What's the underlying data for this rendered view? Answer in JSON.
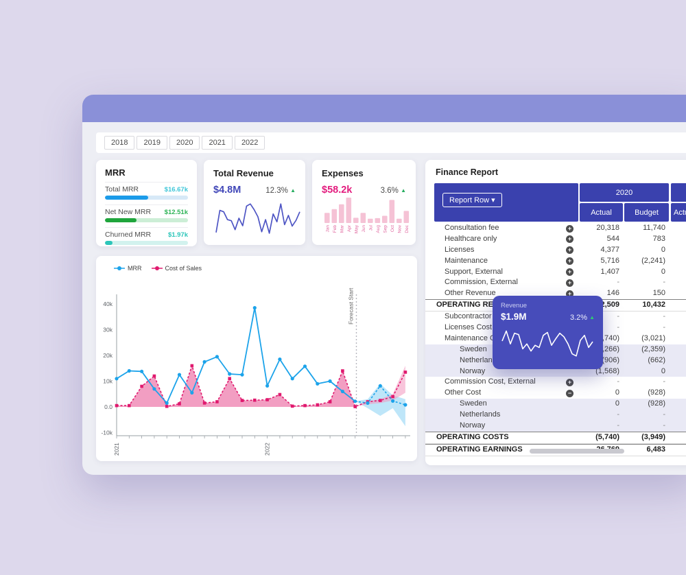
{
  "tabs": {
    "years": [
      "2018",
      "2019",
      "2020",
      "2021",
      "2022"
    ]
  },
  "kpi": {
    "mrr": {
      "title": "MRR",
      "rows": [
        {
          "label": "Total MRR",
          "value": "$16.67k",
          "pct": 52,
          "bar_color": "#1b9be9",
          "track_color": "#d7e9f7",
          "value_color": "#3ec6d8"
        },
        {
          "label": "Net New MRR",
          "value": "$12.51k",
          "pct": 38,
          "bar_color": "#1fa53c",
          "track_color": "#cceed6",
          "value_color": "#2fb457"
        },
        {
          "label": "Churned MRR",
          "value": "$1.97k",
          "pct": 9,
          "bar_color": "#2cc5b9",
          "track_color": "#d2f2ee",
          "value_color": "#2cc5b9"
        }
      ]
    },
    "revenue": {
      "title": "Total Revenue",
      "value": "$4.8M",
      "value_color": "#4147b8",
      "delta": "12.3%",
      "arrow": "▲",
      "line_color": "#4e55c4"
    },
    "expenses": {
      "title": "Expenses",
      "value": "$58.2k",
      "value_color": "#e31c7e",
      "delta": "3.6%",
      "arrow": "▲",
      "bar_color": "#f5c2d5",
      "label_color": "#e0679f"
    }
  },
  "report": {
    "title": "Finance Report",
    "button_label": "Report Row",
    "caret": "▾",
    "group_2020": "2020",
    "col_actual": "Actual",
    "col_budget": "Budget",
    "col_actual_next": "Actual",
    "header_color": "#3a41ae",
    "rows": [
      {
        "label": "Consultation fee",
        "icon": "plus",
        "actual": "20,318",
        "budget": "11,740",
        "style": "normal"
      },
      {
        "label": "Healthcare only",
        "icon": "plus",
        "actual": "544",
        "budget": "783",
        "style": "normal"
      },
      {
        "label": "Licenses",
        "icon": "plus",
        "actual": "4,377",
        "budget": "0",
        "style": "normal"
      },
      {
        "label": "Maintenance",
        "icon": "plus",
        "actual": "5,716",
        "budget": "(2,241)",
        "style": "normal"
      },
      {
        "label": "Support, External",
        "icon": "plus",
        "actual": "1,407",
        "budget": "0",
        "style": "normal"
      },
      {
        "label": "Commission, External",
        "icon": "plus",
        "actual": "-",
        "budget": "-",
        "style": "normal"
      },
      {
        "label": "Other Revenue",
        "icon": "plus",
        "actual": "146",
        "budget": "150",
        "style": "normal"
      },
      {
        "label": "OPERATING REVENUE",
        "icon": null,
        "actual": "32,509",
        "budget": "10,432",
        "style": "total"
      },
      {
        "label": "Subcontractor",
        "icon": "plus",
        "actual": "-",
        "budget": "-",
        "style": "normal"
      },
      {
        "label": "Licenses Cost",
        "icon": "plus",
        "actual": "-",
        "budget": "-",
        "style": "normal"
      },
      {
        "label": "Maintenance Cost",
        "icon": "minus",
        "actual": "(5,740)",
        "budget": "(3,021)",
        "style": "normal"
      },
      {
        "label": "Sweden",
        "icon": null,
        "actual": "(3,266)",
        "budget": "(2,359)",
        "style": "sub"
      },
      {
        "label": "Netherlands",
        "icon": null,
        "actual": "(906)",
        "budget": "(662)",
        "style": "sub"
      },
      {
        "label": "Norway",
        "icon": null,
        "actual": "(1,568)",
        "budget": "0",
        "style": "sub"
      },
      {
        "label": "Commission Cost, External",
        "icon": "plus",
        "actual": "-",
        "budget": "-",
        "style": "normal"
      },
      {
        "label": "Other Cost",
        "icon": "minus",
        "actual": "0",
        "budget": "(928)",
        "style": "normal"
      },
      {
        "label": "Sweden",
        "icon": null,
        "actual": "0",
        "budget": "(928)",
        "style": "sub"
      },
      {
        "label": "Netherlands",
        "icon": null,
        "actual": "-",
        "budget": "-",
        "style": "sub"
      },
      {
        "label": "Norway",
        "icon": null,
        "actual": "-",
        "budget": "-",
        "style": "sub"
      },
      {
        "label": "OPERATING COSTS",
        "icon": null,
        "actual": "(5,740)",
        "budget": "(3,949)",
        "style": "total"
      },
      {
        "label": "OPERATING EARNINGS",
        "icon": null,
        "actual": "26,769",
        "budget": "6,483",
        "style": "total"
      }
    ]
  },
  "tooltip": {
    "label": "Revenue",
    "value": "$1.9M",
    "delta": "3.2%",
    "arrow": "▲",
    "bg": "#474cba"
  },
  "chart_data": [
    {
      "id": "revenue-sparkline",
      "type": "line",
      "values": [
        8,
        70,
        66,
        44,
        41,
        16,
        48,
        27,
        82,
        88,
        72,
        52,
        10,
        44,
        6,
        60,
        38,
        88,
        30,
        56,
        26,
        42,
        66
      ]
    },
    {
      "id": "expenses-bars",
      "type": "bar",
      "categories": [
        "Jan",
        "Feb",
        "Mar",
        "Apr",
        "May",
        "Jun",
        "Jul",
        "Aug",
        "Sep",
        "Oct",
        "Nov",
        "Dec"
      ],
      "values": [
        35,
        48,
        65,
        88,
        18,
        35,
        15,
        17,
        25,
        80,
        15,
        42
      ]
    },
    {
      "id": "mrr-vs-cost",
      "type": "line",
      "ylim": [
        -10000,
        45000
      ],
      "y_ticks": [
        {
          "label": "40k",
          "v": 40
        },
        {
          "label": "30k",
          "v": 30
        },
        {
          "label": "20k",
          "v": 20
        },
        {
          "label": "10k",
          "v": 10
        },
        {
          "label": "0.0",
          "v": 0
        },
        {
          "label": "-10k",
          "v": -10
        }
      ],
      "x_tick_labels": [
        {
          "label": "2021",
          "index": 0
        },
        {
          "label": "2022",
          "index": 12
        }
      ],
      "forecast_label": "Forecast Start",
      "forecast_index": 19.1,
      "series": [
        {
          "name": "MRR",
          "color": "#1ca3ea",
          "history": [
            11,
            14,
            13.8,
            7,
            1.5,
            12.5,
            5.5,
            17.5,
            19.5,
            12.8,
            12.5,
            38.5,
            8.2,
            18.5,
            11,
            15.8,
            9,
            10,
            6,
            2.2
          ],
          "forecast": [
            1.5,
            8.2,
            2.3,
            0.8
          ],
          "band_upper": [
            3,
            9,
            4.5,
            3
          ],
          "band_lower": [
            -0.5,
            -3.5,
            -0.5,
            -7.5
          ],
          "band_fill": "rgba(125,205,244,0.5)"
        },
        {
          "name": "Cost of Sales",
          "color": "#e0196e",
          "history": [
            0.5,
            0.5,
            8,
            12,
            0.2,
            1.2,
            16,
            1.5,
            2,
            11,
            2.5,
            2.6,
            2.8,
            4.8,
            0.3,
            0.5,
            0.8,
            2,
            14,
            0.1
          ],
          "forecast": [
            2,
            2.5,
            4,
            13.5
          ],
          "band_upper": [
            2.2,
            3,
            5,
            16
          ],
          "band_lower": [
            1,
            1.5,
            2.5,
            5.5
          ],
          "band_fill": "rgba(243,150,190,0.55)",
          "area_fill": "rgba(224,25,110,0.42)"
        }
      ]
    },
    {
      "id": "tooltip-sparkline",
      "type": "line",
      "values": [
        50,
        78,
        42,
        72,
        68,
        28,
        42,
        22,
        38,
        32,
        66,
        74,
        38,
        56,
        72,
        62,
        42,
        14,
        8,
        52,
        66,
        32,
        48
      ]
    }
  ]
}
